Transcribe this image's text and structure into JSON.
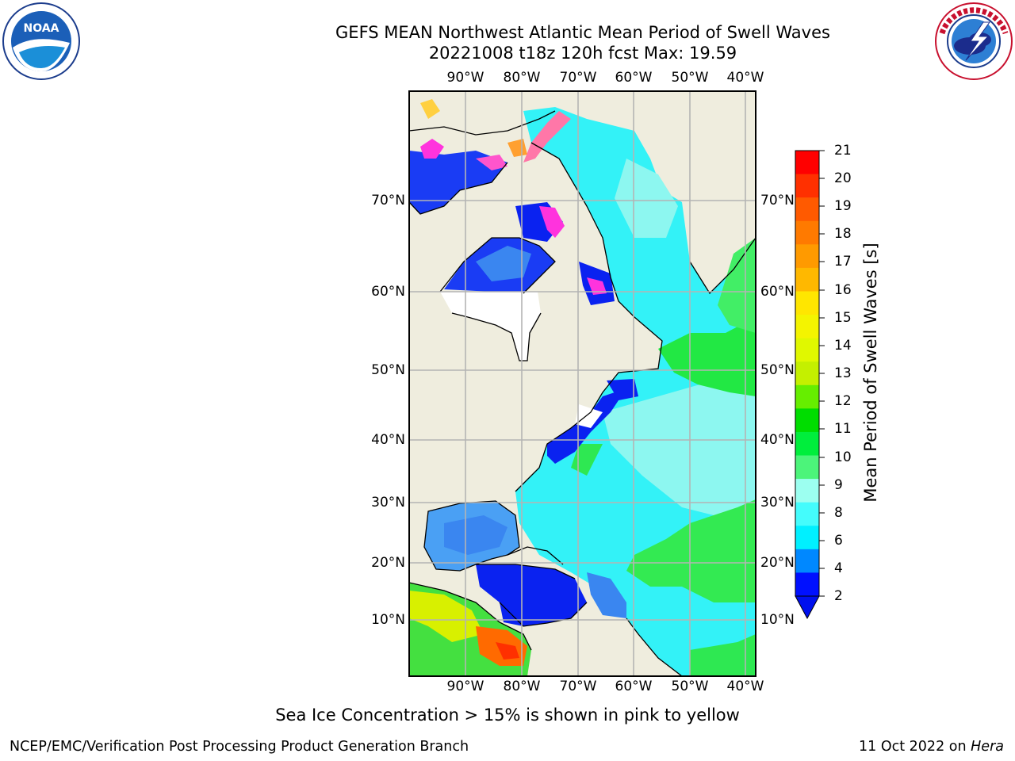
{
  "header": {
    "title_line1": "GEFS MEAN Northwest Atlantic Mean Period of Swell Waves",
    "title_line2": "20221008 t18z 120h fcst   Max: 19.59"
  },
  "logos": {
    "left": {
      "name": "NOAA",
      "ring_text": "NATIONAL OCEANIC AND ATMOSPHERIC ADMINISTRATION · U.S. DEPARTMENT OF COMMERCE"
    },
    "right": {
      "name": "NATIONAL WEATHER SERVICE"
    }
  },
  "map": {
    "lon_labels": [
      "90°W",
      "80°W",
      "70°W",
      "60°W",
      "50°W",
      "40°W"
    ],
    "lat_labels": [
      "70°N",
      "60°N",
      "50°N",
      "40°N",
      "30°N",
      "20°N",
      "10°N"
    ],
    "colors": {
      "land": "#efedde",
      "no_data": "#ffffff",
      "grid": "#b4b4b4"
    }
  },
  "colorbar": {
    "label": "Mean Period of Swell Waves [s]",
    "ticks": [
      "21",
      "20",
      "19",
      "18",
      "17",
      "16",
      "15",
      "14",
      "13",
      "12",
      "11",
      "10",
      "9",
      "8",
      "6",
      "4",
      "2"
    ],
    "colors_top_to_bottom": [
      "#ff0000",
      "#ff3000",
      "#ff5a00",
      "#ff7a00",
      "#ff9a00",
      "#ffb800",
      "#ffe600",
      "#f4f400",
      "#e0f800",
      "#c4f000",
      "#66ee00",
      "#00dd00",
      "#00ee3c",
      "#4cf47a",
      "#9cfff0",
      "#44fcfc",
      "#00f0ff",
      "#0088ff",
      "#0010ff"
    ],
    "under_color": "#0010ee"
  },
  "note": "Sea Ice Concentration > 15% is shown in pink to yellow",
  "footer": {
    "left": "NCEP/EMC/Verification Post Processing Product Generation Branch",
    "right_prefix": "11 Oct 2022 on ",
    "right_machine": "Hera"
  }
}
